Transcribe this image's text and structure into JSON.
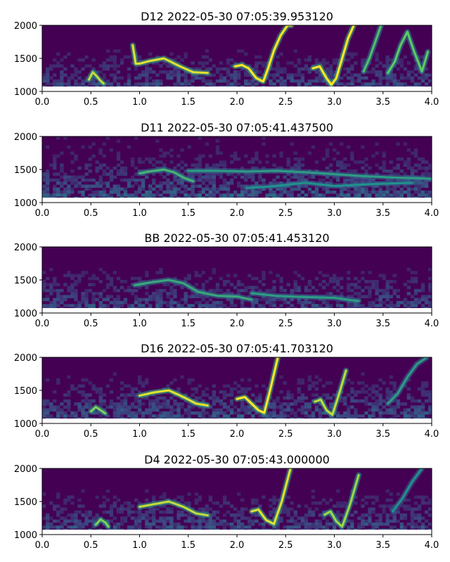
{
  "colors": {
    "background": "#440154",
    "low": "#3b528b",
    "mid": "#21918c",
    "high": "#5ec962",
    "peak": "#fde725",
    "white_band": "#ffffff"
  },
  "chart_data": [
    {
      "type": "heatmap",
      "title": "D12 2022-05-30 07:05:39.953120",
      "xlim": [
        0.0,
        4.0
      ],
      "ylim": [
        1000,
        2000
      ],
      "xticks": [
        "0.0",
        "0.5",
        "1.0",
        "1.5",
        "2.0",
        "2.5",
        "3.0",
        "3.5",
        "4.0"
      ],
      "yticks": [
        "1000",
        "1500",
        "2000"
      ],
      "noise_level": 0.55,
      "calls": [
        {
          "t": [
            0.48,
            0.52,
            0.56,
            0.6,
            0.63
          ],
          "f": [
            1180,
            1290,
            1230,
            1160,
            1120
          ],
          "strength": 0.9
        },
        {
          "t": [
            0.93,
            0.96,
            1.0,
            1.1,
            1.25,
            1.4,
            1.55,
            1.7
          ],
          "f": [
            1700,
            1420,
            1420,
            1460,
            1500,
            1390,
            1290,
            1280
          ],
          "strength": 0.95
        },
        {
          "t": [
            1.98,
            2.05,
            2.12,
            2.2,
            2.27,
            2.32,
            2.38,
            2.45,
            2.52,
            2.56
          ],
          "f": [
            1380,
            1400,
            1350,
            1200,
            1150,
            1350,
            1620,
            1850,
            2000,
            2000
          ],
          "strength": 1.0
        },
        {
          "t": [
            2.78,
            2.85,
            2.92,
            2.97,
            3.02,
            3.08,
            3.14,
            3.2
          ],
          "f": [
            1350,
            1380,
            1200,
            1100,
            1200,
            1500,
            1800,
            2000
          ],
          "strength": 1.0
        },
        {
          "t": [
            3.3,
            3.36,
            3.42,
            3.48
          ],
          "f": [
            1300,
            1500,
            1750,
            2000
          ],
          "strength": 0.7
        },
        {
          "t": [
            3.55,
            3.62,
            3.68,
            3.75,
            3.82,
            3.9,
            3.96
          ],
          "f": [
            1280,
            1450,
            1700,
            1900,
            1600,
            1300,
            1600
          ],
          "strength": 0.75
        }
      ]
    },
    {
      "type": "heatmap",
      "title": "D11 2022-05-30 07:05:41.437500",
      "xlim": [
        0.0,
        4.0
      ],
      "ylim": [
        1000,
        2000
      ],
      "xticks": [
        "0.0",
        "0.5",
        "1.0",
        "1.5",
        "2.0",
        "2.5",
        "3.0",
        "3.5",
        "4.0"
      ],
      "yticks": [
        "1000",
        "1500",
        "2000"
      ],
      "noise_level": 0.75,
      "calls": [
        {
          "t": [
            1.0,
            1.1,
            1.25,
            1.35,
            1.45,
            1.55
          ],
          "f": [
            1440,
            1470,
            1500,
            1460,
            1380,
            1320
          ],
          "strength": 0.65
        },
        {
          "t": [
            1.5,
            1.8,
            2.1,
            2.4,
            2.7,
            3.0,
            3.3,
            3.6,
            4.0
          ],
          "f": [
            1480,
            1480,
            1470,
            1480,
            1460,
            1430,
            1400,
            1380,
            1360
          ],
          "strength": 0.55
        },
        {
          "t": [
            2.1,
            2.4,
            2.7,
            3.0,
            3.4,
            3.8
          ],
          "f": [
            1220,
            1250,
            1300,
            1250,
            1280,
            1300
          ],
          "strength": 0.5
        }
      ]
    },
    {
      "type": "heatmap",
      "title": "BB 2022-05-30 07:05:41.453120",
      "xlim": [
        0.0,
        4.0
      ],
      "ylim": [
        1000,
        2000
      ],
      "xticks": [
        "0.0",
        "0.5",
        "1.0",
        "1.5",
        "2.0",
        "2.5",
        "3.0",
        "3.5",
        "4.0"
      ],
      "yticks": [
        "1000",
        "1500",
        "2000"
      ],
      "noise_level": 0.6,
      "calls": [
        {
          "t": [
            0.95,
            1.1,
            1.3,
            1.45,
            1.6,
            1.8,
            2.0,
            2.15
          ],
          "f": [
            1420,
            1460,
            1500,
            1450,
            1320,
            1260,
            1250,
            1200
          ],
          "strength": 0.6
        },
        {
          "t": [
            2.15,
            2.4,
            2.7,
            3.0,
            3.25
          ],
          "f": [
            1300,
            1260,
            1240,
            1230,
            1180
          ],
          "strength": 0.55
        }
      ]
    },
    {
      "type": "heatmap",
      "title": "D16 2022-05-30 07:05:41.703120",
      "xlim": [
        0.0,
        4.0
      ],
      "ylim": [
        1000,
        2000
      ],
      "xticks": [
        "0.0",
        "0.5",
        "1.0",
        "1.5",
        "2.0",
        "2.5",
        "3.0",
        "3.5",
        "4.0"
      ],
      "yticks": [
        "1000",
        "1500",
        "2000"
      ],
      "noise_level": 0.65,
      "calls": [
        {
          "t": [
            0.5,
            0.55,
            0.6,
            0.65
          ],
          "f": [
            1180,
            1250,
            1200,
            1150
          ],
          "strength": 0.8
        },
        {
          "t": [
            1.0,
            1.15,
            1.3,
            1.45,
            1.58,
            1.7
          ],
          "f": [
            1420,
            1470,
            1500,
            1400,
            1300,
            1270
          ],
          "strength": 0.95
        },
        {
          "t": [
            2.0,
            2.08,
            2.15,
            2.22,
            2.28,
            2.34,
            2.42
          ],
          "f": [
            1370,
            1400,
            1300,
            1200,
            1160,
            1500,
            2000
          ],
          "strength": 1.0
        },
        {
          "t": [
            2.8,
            2.86,
            2.92,
            2.98,
            3.05,
            3.12
          ],
          "f": [
            1330,
            1360,
            1200,
            1130,
            1450,
            1800
          ],
          "strength": 0.9
        },
        {
          "t": [
            3.55,
            3.65,
            3.75,
            3.85,
            3.95
          ],
          "f": [
            1300,
            1450,
            1700,
            1900,
            2000
          ],
          "strength": 0.55
        }
      ]
    },
    {
      "type": "heatmap",
      "title": "D4 2022-05-30 07:05:43.000000",
      "xlim": [
        0.0,
        4.0
      ],
      "ylim": [
        1000,
        2000
      ],
      "xticks": [
        "0.0",
        "0.5",
        "1.0",
        "1.5",
        "2.0",
        "2.5",
        "3.0",
        "3.5",
        "4.0"
      ],
      "yticks": [
        "1000",
        "1500",
        "2000"
      ],
      "noise_level": 0.6,
      "calls": [
        {
          "t": [
            0.55,
            0.6,
            0.65,
            0.68
          ],
          "f": [
            1150,
            1230,
            1180,
            1120
          ],
          "strength": 0.8
        },
        {
          "t": [
            1.0,
            1.15,
            1.3,
            1.45,
            1.58,
            1.7
          ],
          "f": [
            1420,
            1460,
            1500,
            1420,
            1320,
            1290
          ],
          "strength": 0.9
        },
        {
          "t": [
            2.15,
            2.22,
            2.3,
            2.38,
            2.46,
            2.55
          ],
          "f": [
            1350,
            1380,
            1220,
            1160,
            1500,
            2000
          ],
          "strength": 0.95
        },
        {
          "t": [
            2.9,
            2.96,
            3.02,
            3.08,
            3.16,
            3.25
          ],
          "f": [
            1300,
            1350,
            1200,
            1120,
            1450,
            1900
          ],
          "strength": 0.85
        },
        {
          "t": [
            3.6,
            3.7,
            3.8,
            3.9
          ],
          "f": [
            1350,
            1550,
            1800,
            2000
          ],
          "strength": 0.5
        }
      ]
    }
  ]
}
